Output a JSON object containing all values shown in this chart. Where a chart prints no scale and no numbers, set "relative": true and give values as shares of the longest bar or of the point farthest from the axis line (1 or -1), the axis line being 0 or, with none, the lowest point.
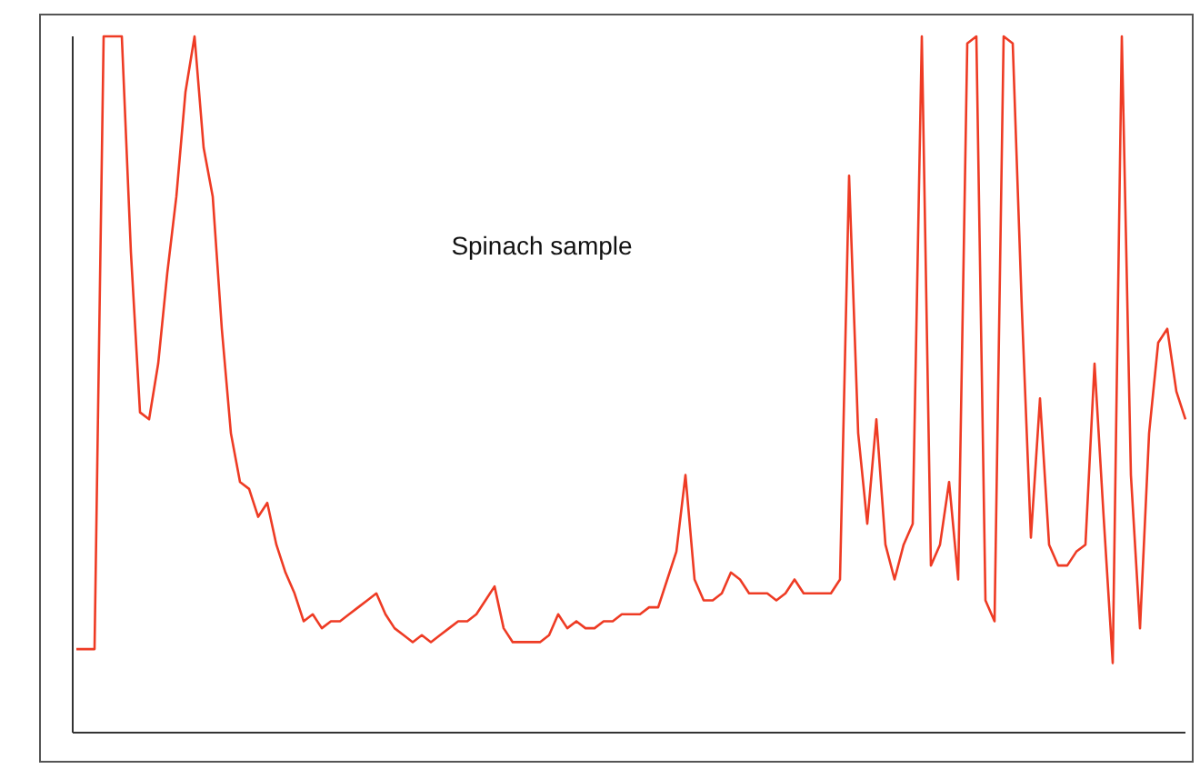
{
  "chart_data": {
    "type": "line",
    "relative": true,
    "annotations": [
      "Spinach sample"
    ],
    "categories": [
      null,
      null,
      null,
      null,
      null,
      null,
      null,
      null,
      null,
      null,
      null,
      null,
      null,
      null,
      null,
      null,
      null,
      null,
      null,
      null,
      null,
      null,
      null,
      null,
      null,
      null,
      null,
      null,
      null,
      null,
      null,
      null,
      null,
      null,
      null,
      null,
      null,
      null,
      null,
      null,
      null,
      null,
      null,
      null,
      null,
      null,
      null,
      null,
      null,
      null,
      null,
      null,
      null,
      null,
      null,
      null,
      null,
      null,
      null,
      null,
      null,
      null,
      null,
      null,
      null,
      null,
      null,
      null,
      null,
      null,
      null,
      null,
      null,
      null,
      null,
      null,
      null,
      null,
      null,
      null,
      null,
      null,
      null,
      null,
      null,
      null,
      null,
      null,
      null,
      null,
      null,
      null,
      null,
      null,
      null,
      null,
      null,
      null,
      null,
      null,
      null,
      null,
      null,
      null,
      null,
      null,
      null,
      null,
      null,
      null,
      null,
      null,
      null,
      null,
      null,
      null,
      null,
      null,
      null,
      null,
      null,
      null,
      null
    ],
    "series": [
      {
        "color": "#ee3b24",
        "values": [
          0.12,
          0.12,
          0.12,
          1,
          1,
          1,
          0.69,
          0.46,
          0.45,
          0.53,
          0.66,
          0.77,
          0.92,
          1,
          0.84,
          0.77,
          0.58,
          0.43,
          0.36,
          0.35,
          0.31,
          0.33,
          0.27,
          0.23,
          0.2,
          0.16,
          0.17,
          0.15,
          0.16,
          0.16,
          0.17,
          0.18,
          0.19,
          0.2,
          0.17,
          0.15,
          0.14,
          0.13,
          0.14,
          0.13,
          0.14,
          0.15,
          0.16,
          0.16,
          0.17,
          0.19,
          0.21,
          0.15,
          0.13,
          0.13,
          0.13,
          0.13,
          0.14,
          0.17,
          0.15,
          0.16,
          0.15,
          0.15,
          0.16,
          0.16,
          0.17,
          0.17,
          0.17,
          0.18,
          0.18,
          0.22,
          0.26,
          0.37,
          0.22,
          0.19,
          0.19,
          0.2,
          0.23,
          0.22,
          0.2,
          0.2,
          0.2,
          0.19,
          0.2,
          0.22,
          0.2,
          0.2,
          0.2,
          0.2,
          0.22,
          0.8,
          0.43,
          0.3,
          0.45,
          0.27,
          0.22,
          0.27,
          0.3,
          1,
          0.24,
          0.27,
          0.36,
          0.22,
          0.99,
          1,
          0.19,
          0.16,
          1,
          0.99,
          0.61,
          0.28,
          0.48,
          0.27,
          0.24,
          0.24,
          0.26,
          0.27,
          0.53,
          0.31,
          0.1,
          1,
          0.37,
          0.15,
          0.43,
          0.56,
          0.58,
          0.49,
          0.45
        ]
      }
    ]
  }
}
